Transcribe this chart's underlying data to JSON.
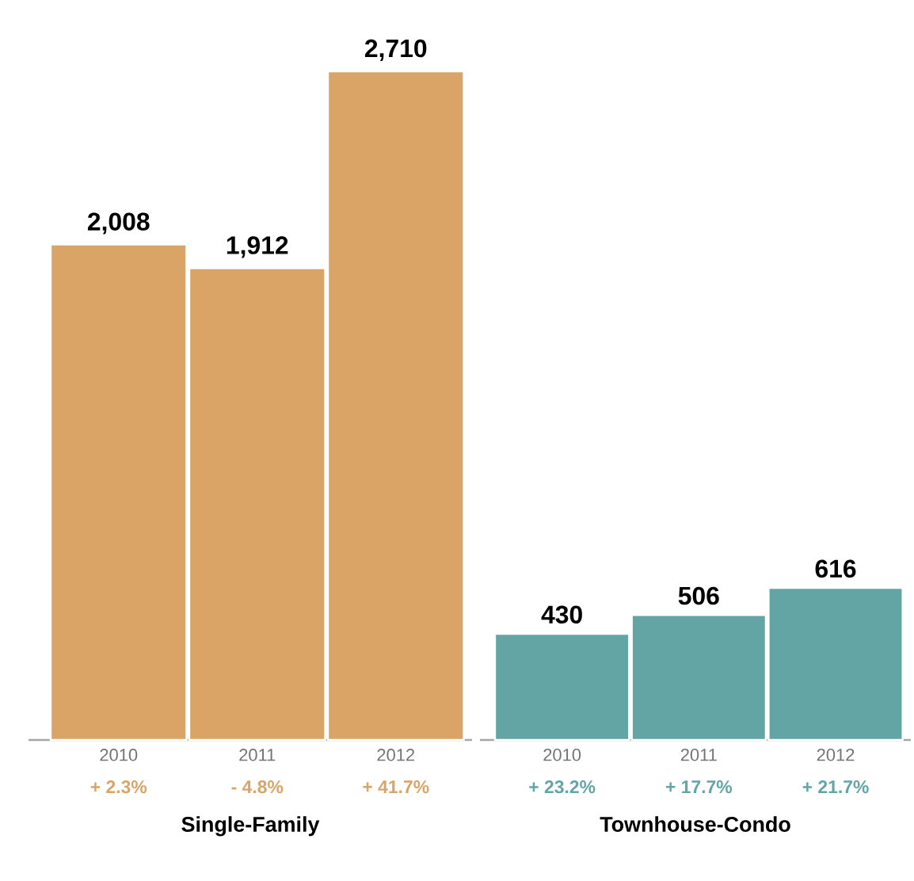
{
  "chart_data": [
    {
      "type": "bar",
      "xlabel": "Single-Family",
      "categories": [
        "2010",
        "2011",
        "2012"
      ],
      "values": [
        2008,
        1912,
        2710
      ],
      "value_labels": [
        "2,008",
        "1,912",
        "2,710"
      ],
      "color": "#dba467",
      "tick_labels": "x",
      "annotations": [
        "+ 2.3%",
        "- 4.8%",
        "+ 41.7%"
      ]
    },
    {
      "type": "bar",
      "xlabel": "Townhouse-Condo",
      "categories": [
        "2010",
        "2011",
        "2012"
      ],
      "values": [
        430,
        506,
        616
      ],
      "value_labels": [
        "430",
        "506",
        "616"
      ],
      "color": "#63a5a5",
      "tick_labels": "x",
      "annotations": [
        "+ 23.2%",
        "+ 17.7%",
        "+ 21.7%"
      ]
    }
  ]
}
